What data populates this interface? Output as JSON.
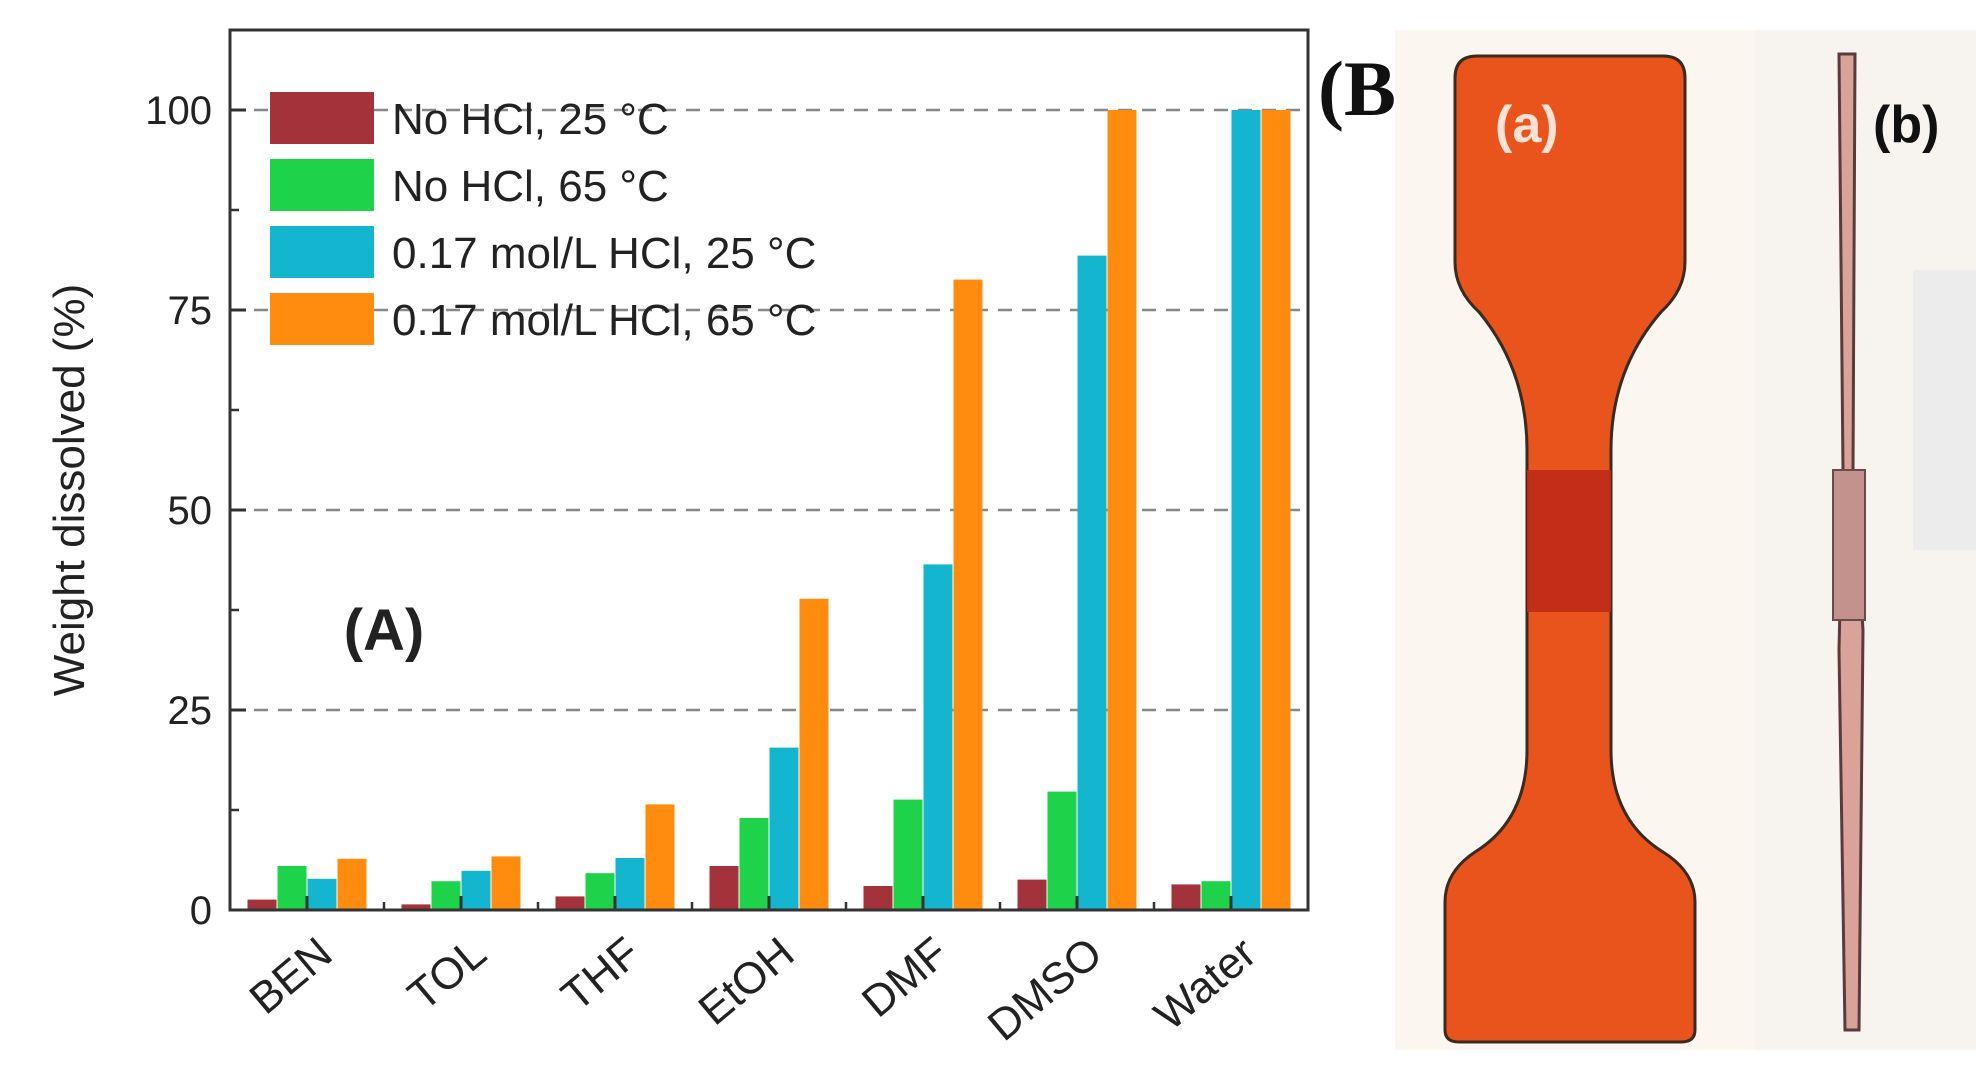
{
  "chart_data": {
    "type": "bar",
    "panel_label": "(A)",
    "ylabel": "Weight dissolved (%)",
    "xlabel": "",
    "ylim": [
      0,
      110
    ],
    "yticks": [
      0,
      25,
      50,
      75,
      100
    ],
    "grid": "dashed horizontal at 25, 50, 75, 100",
    "legend_position": "top-left",
    "categories": [
      "BEN",
      "TOL",
      "THF",
      "EtOH",
      "DMF",
      "DMSO",
      "Water"
    ],
    "series": [
      {
        "name": "No HCl, 25 °C",
        "color": "#a3323a",
        "values": [
          1.3,
          0.7,
          1.7,
          5.5,
          3.0,
          3.8,
          3.2
        ]
      },
      {
        "name": "No HCl, 65 °C",
        "color": "#1ed24a",
        "values": [
          5.5,
          3.6,
          4.6,
          11.5,
          13.8,
          14.8,
          3.6
        ]
      },
      {
        "name": "0.17 mol/L HCl, 25 °C",
        "color": "#13b5cf",
        "values": [
          3.9,
          4.9,
          6.5,
          20.3,
          43.2,
          81.8,
          100
        ]
      },
      {
        "name": "0.17 mol/L HCl, 65 °C",
        "color": "#ff8c0f",
        "values": [
          6.4,
          6.7,
          13.2,
          38.9,
          78.8,
          100,
          100
        ]
      }
    ]
  },
  "photo_panel": {
    "label": "(B)",
    "photo_a_label": "(a)",
    "photo_b_label": "(b)"
  }
}
